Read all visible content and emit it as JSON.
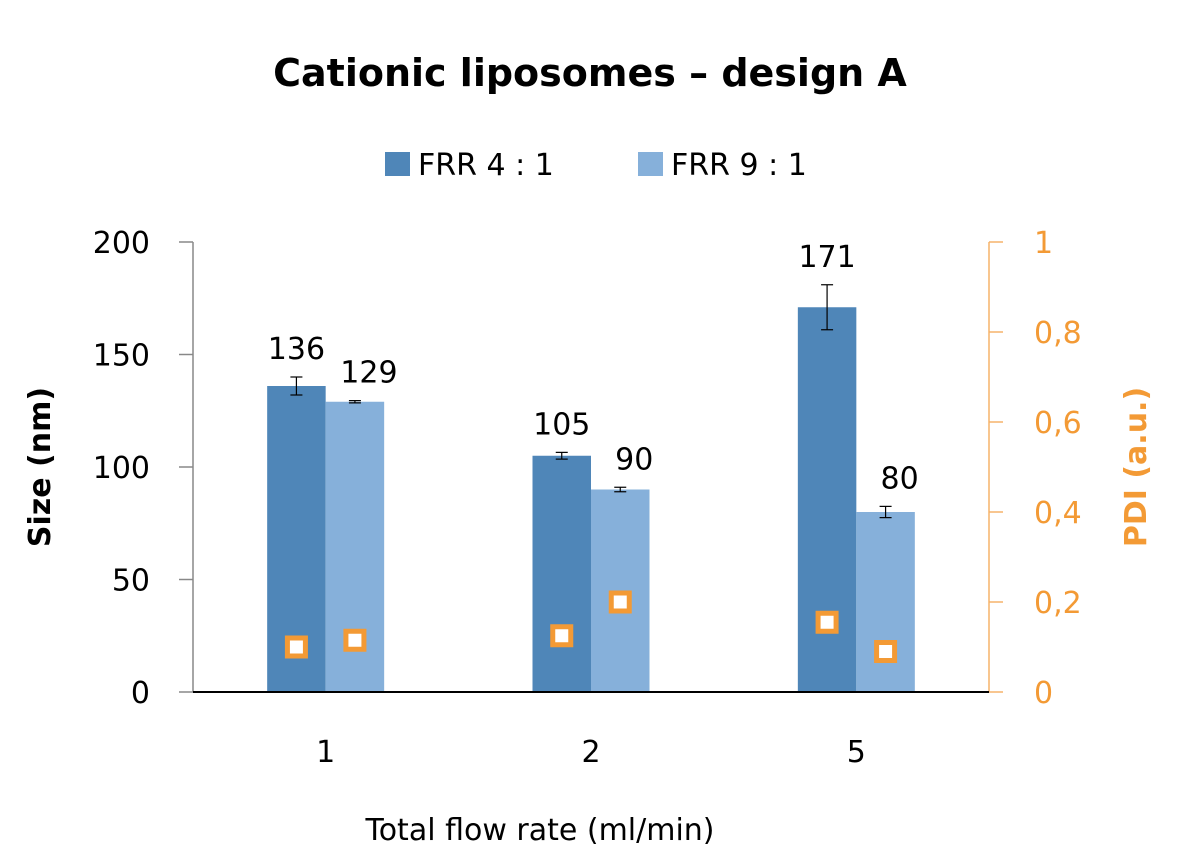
{
  "chart_data": {
    "type": "bar",
    "title": "Cationic liposomes – design A",
    "xlabel": "Total flow rate (ml/min)",
    "ylabel": "Size (nm)",
    "y2label": "PDI (a.u.)",
    "categories": [
      "1",
      "2",
      "5"
    ],
    "ylim": [
      0,
      200
    ],
    "yticks": [
      "0",
      "50",
      "100",
      "150",
      "200"
    ],
    "y2lim": [
      0,
      1
    ],
    "y2ticks": [
      "0",
      "0,2",
      "0,4",
      "0,6",
      "0,8",
      "1"
    ],
    "legend_position": "top",
    "grid": false,
    "series": [
      {
        "name": "FRR 4 : 1",
        "color": "#4f86b8",
        "values": [
          136,
          105,
          171
        ],
        "labels": [
          "136",
          "105",
          "171"
        ],
        "errors": [
          4,
          1.5,
          10
        ],
        "pdi": [
          0.1,
          0.125,
          0.155
        ]
      },
      {
        "name": "FRR 9 : 1",
        "color": "#86b0da",
        "values": [
          129,
          90,
          80
        ],
        "labels": [
          "129",
          "90",
          "80"
        ],
        "errors": [
          0.5,
          1,
          2.5
        ],
        "pdi": [
          0.115,
          0.2,
          0.09
        ]
      }
    ],
    "pdi_marker_color": "#f39a35"
  }
}
